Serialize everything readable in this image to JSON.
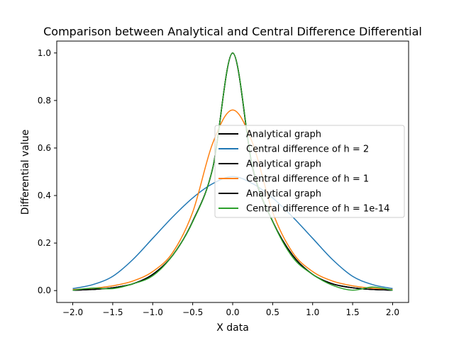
{
  "chart_data": {
    "type": "line",
    "title": "Comparison between Analytical and Central Difference Differential",
    "xlabel": "X data",
    "ylabel": "Differential value",
    "xlim": [
      -2.2,
      2.2
    ],
    "ylim": [
      -0.05,
      1.05
    ],
    "xticks": [
      -2.0,
      -1.5,
      -1.0,
      -0.5,
      0.0,
      0.5,
      1.0,
      1.5,
      2.0
    ],
    "xtick_labels": [
      "−2.0",
      "−1.5",
      "−1.0",
      "−0.5",
      "0.0",
      "0.5",
      "1.0",
      "1.5",
      "2.0"
    ],
    "yticks": [
      0.0,
      0.2,
      0.4,
      0.6,
      0.8,
      1.0
    ],
    "ytick_labels": [
      "0.0",
      "0.2",
      "0.4",
      "0.6",
      "0.8",
      "1.0"
    ],
    "grid": false,
    "legend_position": "center-right",
    "x": [
      -2.0,
      -1.75,
      -1.5,
      -1.25,
      -1.0,
      -0.75,
      -0.5,
      -0.25,
      0.0,
      0.25,
      0.5,
      0.75,
      1.0,
      1.25,
      1.5,
      1.75,
      2.0
    ],
    "series": [
      {
        "name": "Analytical graph",
        "color": "#000000",
        "values": [
          0.0015,
          0.0047,
          0.0117,
          0.0282,
          0.0681,
          0.1484,
          0.2913,
          0.5148,
          1.0,
          0.5148,
          0.2913,
          0.1484,
          0.0681,
          0.0282,
          0.0117,
          0.0047,
          0.0015
        ]
      },
      {
        "name": "Central difference of h = 2",
        "color": "#1f77b4",
        "values": [
          0.0085,
          0.025,
          0.06,
          0.13,
          0.22,
          0.31,
          0.39,
          0.45,
          0.48,
          0.45,
          0.39,
          0.31,
          0.22,
          0.13,
          0.06,
          0.025,
          0.0085
        ]
      },
      {
        "name": "Analytical graph",
        "color": "#000000",
        "values": [
          0.0015,
          0.0047,
          0.0117,
          0.0282,
          0.0681,
          0.1484,
          0.2913,
          0.5148,
          1.0,
          0.5148,
          0.2913,
          0.1484,
          0.0681,
          0.0282,
          0.0117,
          0.0047,
          0.0015
        ]
      },
      {
        "name": "Central difference of h = 1",
        "color": "#ff7f0e",
        "values": [
          0.0042,
          0.0095,
          0.02,
          0.04,
          0.08,
          0.16,
          0.33,
          0.62,
          0.76,
          0.62,
          0.33,
          0.16,
          0.08,
          0.04,
          0.02,
          0.0095,
          0.0042
        ]
      },
      {
        "name": "Analytical graph",
        "color": "#000000",
        "values": [
          0.0015,
          0.0047,
          0.0117,
          0.0282,
          0.0681,
          0.1484,
          0.2913,
          0.5148,
          1.0,
          0.5148,
          0.2913,
          0.1484,
          0.0681,
          0.0282,
          0.0117,
          0.0047,
          0.0015
        ]
      },
      {
        "name": "Central difference of h = 1e-14",
        "color": "#2ca02c",
        "values": [
          0.0015,
          0.0105,
          0.0082,
          0.0282,
          0.0621,
          0.1484,
          0.2893,
          0.5148,
          1.0,
          0.5208,
          0.2913,
          0.1404,
          0.0681,
          0.0222,
          0.0017,
          0.0147,
          0.0015
        ]
      }
    ]
  }
}
